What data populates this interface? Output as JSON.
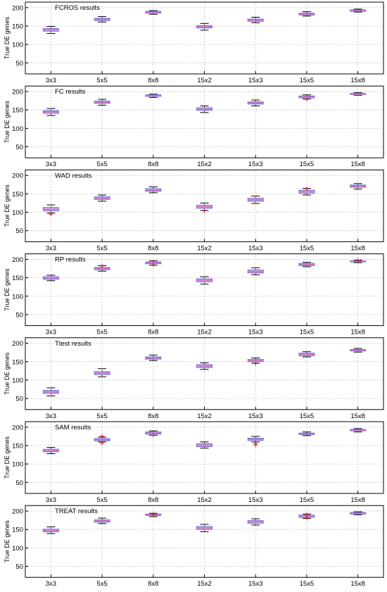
{
  "chart_data": [
    {
      "type": "box",
      "title": "FCROS results",
      "ylabel": "True DE genes",
      "ylim": [
        20,
        215
      ],
      "yticks": [
        50,
        100,
        150,
        200
      ],
      "grid": true,
      "categories": [
        "3x3",
        "5x5",
        "8x8",
        "15x2",
        "15x3",
        "15x5",
        "15x8"
      ],
      "boxes": [
        {
          "whislo": 130,
          "q1": 136,
          "med": 140,
          "q3": 143,
          "whishi": 149,
          "fliers": []
        },
        {
          "whislo": 161,
          "q1": 165,
          "med": 168,
          "q3": 171,
          "whishi": 176,
          "fliers": []
        },
        {
          "whislo": 182,
          "q1": 185,
          "med": 188,
          "q3": 190,
          "whishi": 192,
          "fliers": []
        },
        {
          "whislo": 139,
          "q1": 145,
          "med": 148,
          "q3": 151,
          "whishi": 157,
          "fliers": []
        },
        {
          "whislo": 159,
          "q1": 163,
          "med": 166,
          "q3": 169,
          "whishi": 174,
          "fliers": []
        },
        {
          "whislo": 177,
          "q1": 180,
          "med": 182,
          "q3": 185,
          "whishi": 189,
          "fliers": []
        },
        {
          "whislo": 188,
          "q1": 190,
          "med": 192,
          "q3": 194,
          "whishi": 196,
          "fliers": []
        }
      ]
    },
    {
      "type": "box",
      "title": "FC results",
      "ylabel": "True DE genes",
      "ylim": [
        20,
        215
      ],
      "yticks": [
        50,
        100,
        150,
        200
      ],
      "grid": true,
      "categories": [
        "3x3",
        "5x5",
        "8x8",
        "15x2",
        "15x3",
        "15x5",
        "15x8"
      ],
      "boxes": [
        {
          "whislo": 135,
          "q1": 141,
          "med": 145,
          "q3": 148,
          "whishi": 154,
          "fliers": []
        },
        {
          "whislo": 163,
          "q1": 168,
          "med": 171,
          "q3": 174,
          "whishi": 179,
          "fliers": []
        },
        {
          "whislo": 184,
          "q1": 187,
          "med": 189,
          "q3": 191,
          "whishi": 193,
          "fliers": []
        },
        {
          "whislo": 143,
          "q1": 149,
          "med": 152,
          "q3": 156,
          "whishi": 161,
          "fliers": []
        },
        {
          "whislo": 161,
          "q1": 166,
          "med": 169,
          "q3": 172,
          "whishi": 177,
          "fliers": []
        },
        {
          "whislo": 180,
          "q1": 183,
          "med": 185,
          "q3": 188,
          "whishi": 191,
          "fliers": [
            179
          ]
        },
        {
          "whislo": 190,
          "q1": 192,
          "med": 193,
          "q3": 195,
          "whishi": 197,
          "fliers": []
        }
      ]
    },
    {
      "type": "box",
      "title": "WAD results",
      "ylabel": "True DE genes",
      "ylim": [
        20,
        215
      ],
      "yticks": [
        50,
        100,
        150,
        200
      ],
      "grid": true,
      "categories": [
        "3x3",
        "5x5",
        "8x8",
        "15x2",
        "15x3",
        "15x5",
        "15x8"
      ],
      "boxes": [
        {
          "whislo": 98,
          "q1": 104,
          "med": 108,
          "q3": 113,
          "whishi": 120,
          "fliers": [
            95
          ]
        },
        {
          "whislo": 130,
          "q1": 135,
          "med": 138,
          "q3": 142,
          "whishi": 147,
          "fliers": []
        },
        {
          "whislo": 153,
          "q1": 157,
          "med": 160,
          "q3": 164,
          "whishi": 169,
          "fliers": []
        },
        {
          "whislo": 105,
          "q1": 111,
          "med": 115,
          "q3": 119,
          "whishi": 125,
          "fliers": [
            104
          ]
        },
        {
          "whislo": 124,
          "q1": 130,
          "med": 134,
          "q3": 138,
          "whishi": 144,
          "fliers": []
        },
        {
          "whislo": 147,
          "q1": 152,
          "med": 156,
          "q3": 160,
          "whishi": 165,
          "fliers": [
            164
          ]
        },
        {
          "whislo": 163,
          "q1": 168,
          "med": 171,
          "q3": 174,
          "whishi": 178,
          "fliers": []
        }
      ]
    },
    {
      "type": "box",
      "title": "RP results",
      "ylabel": "True DE genes",
      "ylim": [
        20,
        215
      ],
      "yticks": [
        50,
        100,
        150,
        200
      ],
      "grid": true,
      "categories": [
        "3x3",
        "5x5",
        "8x8",
        "15x2",
        "15x3",
        "15x5",
        "15x8"
      ],
      "boxes": [
        {
          "whislo": 142,
          "q1": 146,
          "med": 149,
          "q3": 153,
          "whishi": 157,
          "fliers": []
        },
        {
          "whislo": 168,
          "q1": 172,
          "med": 175,
          "q3": 178,
          "whishi": 183,
          "fliers": [
            182
          ]
        },
        {
          "whislo": 184,
          "q1": 188,
          "med": 191,
          "q3": 193,
          "whishi": 196,
          "fliers": [
            185
          ]
        },
        {
          "whislo": 133,
          "q1": 139,
          "med": 143,
          "q3": 147,
          "whishi": 153,
          "fliers": []
        },
        {
          "whislo": 158,
          "q1": 163,
          "med": 167,
          "q3": 171,
          "whishi": 177,
          "fliers": []
        },
        {
          "whislo": 180,
          "q1": 183,
          "med": 186,
          "q3": 189,
          "whishi": 192,
          "fliers": []
        },
        {
          "whislo": 191,
          "q1": 193,
          "med": 195,
          "q3": 196,
          "whishi": 198,
          "fliers": [
            197
          ]
        }
      ]
    },
    {
      "type": "box",
      "title": "Ttest results",
      "ylabel": "True DE genes",
      "ylim": [
        20,
        215
      ],
      "yticks": [
        50,
        100,
        150,
        200
      ],
      "grid": true,
      "categories": [
        "3x3",
        "5x5",
        "8x8",
        "15x2",
        "15x3",
        "15x5",
        "15x8"
      ],
      "boxes": [
        {
          "whislo": 57,
          "q1": 64,
          "med": 68,
          "q3": 72,
          "whishi": 79,
          "fliers": []
        },
        {
          "whislo": 109,
          "q1": 115,
          "med": 119,
          "q3": 123,
          "whishi": 131,
          "fliers": []
        },
        {
          "whislo": 153,
          "q1": 157,
          "med": 160,
          "q3": 163,
          "whishi": 168,
          "fliers": []
        },
        {
          "whislo": 129,
          "q1": 134,
          "med": 138,
          "q3": 142,
          "whishi": 147,
          "fliers": []
        },
        {
          "whislo": 146,
          "q1": 150,
          "med": 153,
          "q3": 156,
          "whishi": 160,
          "fliers": [
            145
          ]
        },
        {
          "whislo": 163,
          "q1": 166,
          "med": 170,
          "q3": 173,
          "whishi": 177,
          "fliers": []
        },
        {
          "whislo": 176,
          "q1": 179,
          "med": 181,
          "q3": 183,
          "whishi": 186,
          "fliers": []
        }
      ]
    },
    {
      "type": "box",
      "title": "SAM results",
      "ylabel": "True DE genes",
      "ylim": [
        20,
        215
      ],
      "yticks": [
        50,
        100,
        150,
        200
      ],
      "grid": true,
      "categories": [
        "3x3",
        "5x5",
        "8x8",
        "15x2",
        "15x3",
        "15x5",
        "15x8"
      ],
      "boxes": [
        {
          "whislo": 128,
          "q1": 133,
          "med": 136,
          "q3": 140,
          "whishi": 145,
          "fliers": []
        },
        {
          "whislo": 160,
          "q1": 163,
          "med": 166,
          "q3": 169,
          "whishi": 173,
          "fliers": [
            157,
            175
          ]
        },
        {
          "whislo": 178,
          "q1": 181,
          "med": 184,
          "q3": 187,
          "whishi": 190,
          "fliers": [
            178
          ]
        },
        {
          "whislo": 143,
          "q1": 147,
          "med": 151,
          "q3": 155,
          "whishi": 160,
          "fliers": []
        },
        {
          "whislo": 160,
          "q1": 164,
          "med": 167,
          "q3": 170,
          "whishi": 175,
          "fliers": [
            152,
            156
          ]
        },
        {
          "whislo": 177,
          "q1": 180,
          "med": 182,
          "q3": 184,
          "whishi": 187,
          "fliers": []
        },
        {
          "whislo": 187,
          "q1": 190,
          "med": 192,
          "q3": 194,
          "whishi": 196,
          "fliers": []
        }
      ]
    },
    {
      "type": "box",
      "title": "TREAT results",
      "ylabel": "True DE genes",
      "ylim": [
        20,
        215
      ],
      "yticks": [
        50,
        100,
        150,
        200
      ],
      "grid": true,
      "categories": [
        "3x3",
        "5x5",
        "8x8",
        "15x2",
        "15x3",
        "15x5",
        "15x8"
      ],
      "boxes": [
        {
          "whislo": 139,
          "q1": 144,
          "med": 147,
          "q3": 151,
          "whishi": 157,
          "fliers": []
        },
        {
          "whislo": 166,
          "q1": 170,
          "med": 173,
          "q3": 176,
          "whishi": 181,
          "fliers": []
        },
        {
          "whislo": 185,
          "q1": 188,
          "med": 190,
          "q3": 192,
          "whishi": 194,
          "fliers": [
            191
          ]
        },
        {
          "whislo": 144,
          "q1": 150,
          "med": 154,
          "q3": 158,
          "whishi": 164,
          "fliers": []
        },
        {
          "whislo": 162,
          "q1": 167,
          "med": 171,
          "q3": 174,
          "whishi": 179,
          "fliers": []
        },
        {
          "whislo": 180,
          "q1": 183,
          "med": 186,
          "q3": 189,
          "whishi": 192,
          "fliers": [
            181,
            190
          ]
        },
        {
          "whislo": 190,
          "q1": 192,
          "med": 194,
          "q3": 196,
          "whishi": 198,
          "fliers": []
        }
      ]
    }
  ],
  "colors": {
    "box_edge": "#6a6ad8",
    "box_fill": "#d8b0dc",
    "median": "#d070c8",
    "whisker": "#000000",
    "flier": "#d02020",
    "grid": "#b0b0b0",
    "axes": "#000000"
  }
}
